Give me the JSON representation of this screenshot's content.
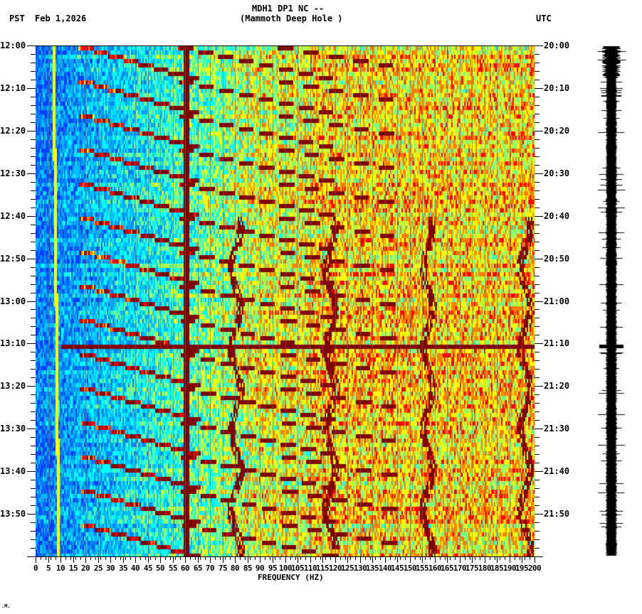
{
  "header": {
    "station": "MDH1 DP1 NC --",
    "location": "(Mammoth Deep Hole )",
    "left_tz": "PST",
    "date": "Feb 1,2026",
    "right_tz": "UTC"
  },
  "footer": {
    "mark": ".M."
  },
  "chart_data": {
    "type": "heatmap",
    "title": "MDH1 DP1 NC -- (Mammoth Deep Hole )",
    "subtitle": "Feb 1,2026",
    "xlabel": "FREQUENCY (HZ)",
    "ylabel_left": "PST",
    "ylabel_right": "UTC",
    "xlim": [
      0,
      200
    ],
    "x_ticks": [
      0,
      5,
      10,
      15,
      20,
      25,
      30,
      35,
      40,
      45,
      50,
      55,
      60,
      65,
      70,
      75,
      80,
      85,
      90,
      95,
      100,
      105,
      110,
      115,
      120,
      125,
      130,
      135,
      140,
      145,
      150,
      155,
      160,
      165,
      170,
      175,
      180,
      185,
      190,
      195,
      200
    ],
    "y_ticks_left": [
      "12:00",
      "12:10",
      "12:20",
      "12:30",
      "12:40",
      "12:50",
      "13:00",
      "13:10",
      "13:20",
      "13:30",
      "13:40",
      "13:50"
    ],
    "y_ticks_right": [
      "20:00",
      "20:10",
      "20:20",
      "20:30",
      "20:40",
      "20:50",
      "21:00",
      "21:10",
      "21:20",
      "21:30",
      "21:40",
      "21:50"
    ],
    "time_range_pst": [
      "12:00",
      "14:00"
    ],
    "time_range_utc": [
      "20:00",
      "22:00"
    ],
    "colormap": [
      "#0040ff",
      "#0080ff",
      "#00c0ff",
      "#00ffff",
      "#80ff80",
      "#ffff00",
      "#ff8000",
      "#ff0000",
      "#800000"
    ],
    "features": [
      {
        "type": "constant_line",
        "frequency_hz": 60,
        "color": "#8b0000",
        "description": "strong 60 Hz power-line"
      },
      {
        "type": "constant_line",
        "frequency_hz": 7,
        "color": "#ffff00",
        "description": "narrow line drifting ~7 to 9 Hz"
      },
      {
        "type": "constant_line",
        "frequency_hz": 38,
        "description": "weak line near 38-40 Hz"
      },
      {
        "type": "constant_line",
        "frequency_hz": 180,
        "description": "weak line near 180 Hz"
      },
      {
        "type": "broadband_event",
        "time_pst": "13:10",
        "time_utc": "21:10",
        "frequency_range_hz": [
          10,
          200
        ]
      },
      {
        "type": "curved_harmonic_sweeps",
        "count_approx": 16,
        "frequency_range_hz": [
          20,
          135
        ],
        "description": "repeating rising-frequency arcs (~every 8 min)"
      },
      {
        "type": "wiggling_tracks",
        "frequencies_hz": [
          80,
          118,
          157,
          196
        ],
        "times_pst": [
          "12:45",
          "13:02",
          "13:17"
        ]
      }
    ],
    "grid": true,
    "seismogram_trace": {
      "position": "right",
      "time_range_utc": [
        "20:00",
        "22:00"
      ],
      "notable_spike_utc": "21:10"
    }
  }
}
